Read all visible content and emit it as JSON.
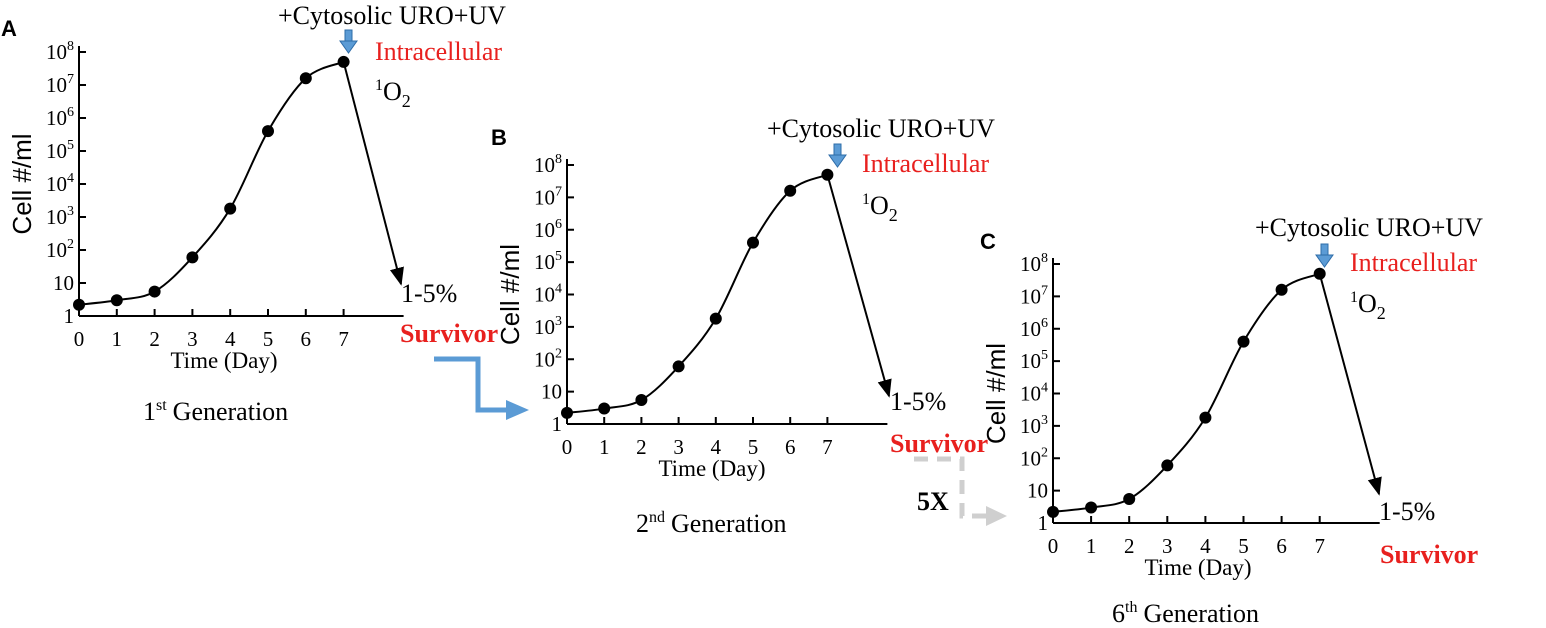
{
  "colors": {
    "ink": "#000000",
    "intracellular": "#e8201e",
    "survivor": "#e8201e",
    "blue_arrow": "#5b9bd5",
    "blue_arrow_stroke": "#2e6ca8",
    "gray_arrow": "#cfcfcf"
  },
  "icons": {
    "treatment_arrow": "blue-down-arrow-icon",
    "transfer_arrow": "blue-elbow-arrow-icon",
    "repeat_arrow": "gray-dashed-elbow-arrow-icon"
  },
  "transfer": {
    "repeat_label": "5X"
  },
  "chart_data": [
    {
      "type": "line",
      "panel_label": "A",
      "xlabel": "Time (Day)",
      "ylabel": "Cell #/ml",
      "x": [
        0,
        1,
        2,
        3,
        4,
        5,
        6,
        7
      ],
      "xticks": [
        "0",
        "1",
        "2",
        "3",
        "4",
        "5",
        "6",
        "7"
      ],
      "yscale": "log",
      "ylim": [
        1,
        100000000
      ],
      "yticks": [
        "1",
        "10",
        "10^2",
        "10^3",
        "10^4",
        "10^5",
        "10^6",
        "10^7",
        "10^8"
      ],
      "grid": false,
      "series": [
        {
          "x": [
            0,
            1,
            2,
            3,
            4,
            5,
            6,
            7
          ],
          "y": [
            2.2,
            3,
            5.5,
            60,
            1800,
            400000,
            16000000,
            50000000
          ]
        }
      ],
      "decline": {
        "from_day": 7,
        "to_level": "1-5%"
      },
      "annotations": {
        "treatment": "+Cytosolic URO+UV",
        "species": "Intracellular",
        "oxygen_pre": "1",
        "oxygen_base": "O",
        "oxygen_sub": "2",
        "survival": "1-5%",
        "survivor": "Survivor"
      },
      "generation": {
        "num": "1",
        "sup": "st",
        "text": "Generation"
      }
    },
    {
      "type": "line",
      "panel_label": "B",
      "xlabel": "Time (Day)",
      "ylabel": "Cell #/ml",
      "x": [
        0,
        1,
        2,
        3,
        4,
        5,
        6,
        7
      ],
      "xticks": [
        "0",
        "1",
        "2",
        "3",
        "4",
        "5",
        "6",
        "7"
      ],
      "yscale": "log",
      "ylim": [
        1,
        100000000
      ],
      "yticks": [
        "1",
        "10",
        "10^2",
        "10^3",
        "10^4",
        "10^5",
        "10^6",
        "10^7",
        "10^8"
      ],
      "grid": false,
      "series": [
        {
          "x": [
            0,
            1,
            2,
            3,
            4,
            5,
            6,
            7
          ],
          "y": [
            2.2,
            3,
            5.5,
            60,
            1800,
            400000,
            16000000,
            50000000
          ]
        }
      ],
      "decline": {
        "from_day": 7,
        "to_level": "1-5%"
      },
      "annotations": {
        "treatment": "+Cytosolic URO+UV",
        "species": "Intracellular",
        "oxygen_pre": "1",
        "oxygen_base": "O",
        "oxygen_sub": "2",
        "survival": "1-5%",
        "survivor": "Survivor"
      },
      "generation": {
        "num": "2",
        "sup": "nd",
        "text": "Generation"
      }
    },
    {
      "type": "line",
      "panel_label": "C",
      "xlabel": "Time (Day)",
      "ylabel": "Cell #/ml",
      "x": [
        0,
        1,
        2,
        3,
        4,
        5,
        6,
        7
      ],
      "xticks": [
        "0",
        "1",
        "2",
        "3",
        "4",
        "5",
        "6",
        "7"
      ],
      "yscale": "log",
      "ylim": [
        1,
        100000000
      ],
      "yticks": [
        "1",
        "10",
        "10^2",
        "10^3",
        "10^4",
        "10^5",
        "10^6",
        "10^7",
        "10^8"
      ],
      "grid": false,
      "series": [
        {
          "x": [
            0,
            1,
            2,
            3,
            4,
            5,
            6,
            7
          ],
          "y": [
            2.2,
            3,
            5.5,
            60,
            1800,
            400000,
            16000000,
            50000000
          ]
        }
      ],
      "decline": {
        "from_day": 7,
        "to_level": "1-5%"
      },
      "annotations": {
        "treatment": "+Cytosolic URO+UV",
        "species": "Intracellular",
        "oxygen_pre": "1",
        "oxygen_base": "O",
        "oxygen_sub": "2",
        "survival": "1-5%",
        "survivor": "Survivor"
      },
      "generation": {
        "num": "6",
        "sup": "th",
        "text": "Generation"
      }
    }
  ]
}
